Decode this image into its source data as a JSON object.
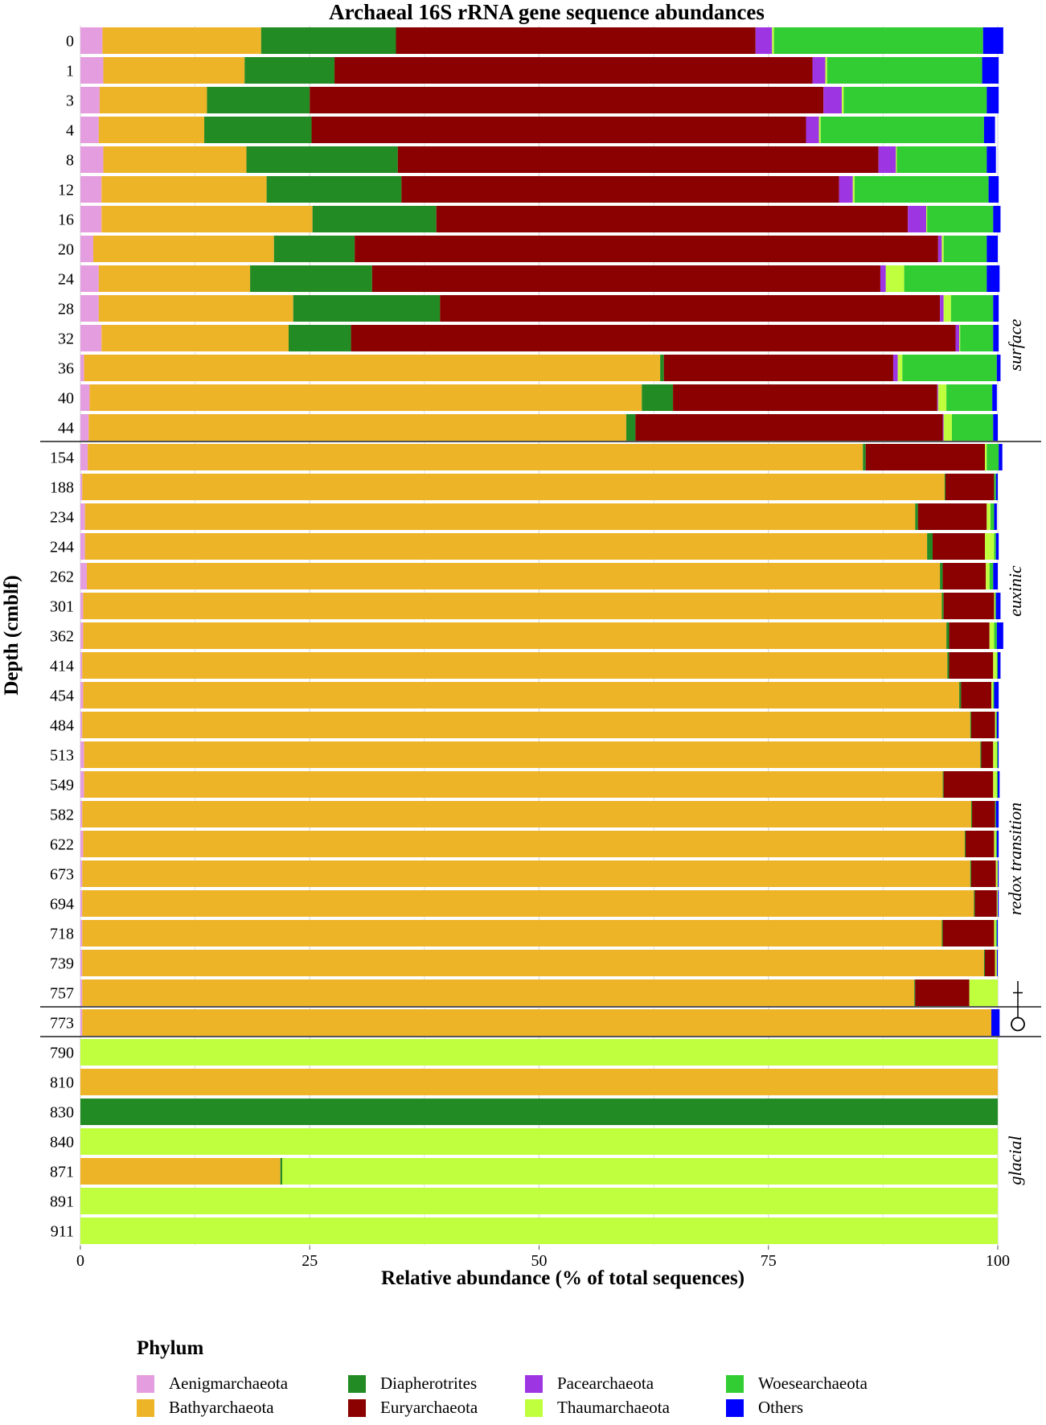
{
  "chart_data": {
    "type": "bar",
    "orientation": "horizontal",
    "stacked": true,
    "title": "Archaeal 16S rRNA gene sequence abundances",
    "xlabel": "Relative abundance (% of total sequences)",
    "ylabel": "Depth (cmblf)",
    "xlim": [
      0,
      100
    ],
    "xticks": [
      "0",
      "25",
      "50",
      "75",
      "100"
    ],
    "grid": true,
    "legend_title": "Phylum",
    "legend_position": "bottom",
    "categories": [
      "0",
      "1",
      "3",
      "4",
      "8",
      "12",
      "16",
      "20",
      "24",
      "28",
      "32",
      "36",
      "40",
      "44",
      "154",
      "188",
      "234",
      "244",
      "262",
      "301",
      "362",
      "414",
      "454",
      "484",
      "513",
      "549",
      "582",
      "622",
      "673",
      "694",
      "718",
      "739",
      "757",
      "773",
      "790",
      "810",
      "830",
      "840",
      "871",
      "891",
      "911"
    ],
    "series": [
      {
        "name": "Aenigmarchaeota",
        "color": "#e49ee0",
        "values": [
          2.4,
          2.5,
          2.1,
          2.0,
          2.5,
          2.3,
          2.3,
          1.4,
          2.0,
          2.0,
          2.3,
          0.4,
          1.0,
          0.9,
          0.8,
          0.2,
          0.5,
          0.5,
          0.7,
          0.3,
          0.3,
          0.2,
          0.3,
          0.2,
          0.4,
          0.4,
          0.2,
          0.3,
          0.2,
          0.2,
          0.2,
          0.2,
          0.2,
          0.2,
          0,
          0,
          0,
          0,
          0,
          0,
          0
        ]
      },
      {
        "name": "Bathyarchaeota",
        "color": "#eeb428",
        "values": [
          17.3,
          15.4,
          11.7,
          11.5,
          15.6,
          18.0,
          23.0,
          19.7,
          16.5,
          21.2,
          20.4,
          62.8,
          60.2,
          58.6,
          84.5,
          94.0,
          90.5,
          91.8,
          93.0,
          93.6,
          94.1,
          94.3,
          95.5,
          96.8,
          97.7,
          93.6,
          96.9,
          96.1,
          96.8,
          97.2,
          93.7,
          98.3,
          90.7,
          99.1,
          0,
          100,
          0,
          0,
          21.8,
          0,
          0
        ]
      },
      {
        "name": "Diapherotrites",
        "color": "#238b23",
        "values": [
          14.7,
          9.8,
          11.2,
          11.7,
          16.5,
          14.7,
          13.5,
          8.8,
          13.3,
          16.0,
          6.8,
          0.4,
          3.4,
          1.0,
          0.3,
          0.1,
          0.3,
          0.6,
          0.3,
          0.2,
          0.3,
          0.2,
          0.2,
          0.1,
          0.1,
          0.1,
          0.1,
          0.1,
          0.1,
          0.1,
          0.1,
          0.1,
          0.1,
          0,
          0,
          0,
          100,
          0,
          0.2,
          0,
          0
        ]
      },
      {
        "name": "Euryarchaeota",
        "color": "#8b0000",
        "values": [
          39.2,
          52.1,
          56.0,
          53.9,
          52.4,
          47.7,
          51.4,
          63.6,
          55.4,
          54.5,
          65.9,
          25.0,
          28.8,
          33.5,
          13.0,
          5.3,
          7.5,
          5.7,
          4.7,
          5.5,
          4.4,
          4.8,
          3.3,
          2.6,
          1.3,
          5.4,
          2.5,
          3.1,
          2.7,
          2.4,
          5.6,
          1.1,
          5.9,
          0,
          0,
          0,
          0,
          0,
          0,
          0,
          0
        ]
      },
      {
        "name": "Pacearchaeota",
        "color": "#9e35e3",
        "values": [
          1.8,
          1.4,
          2.0,
          1.4,
          1.9,
          1.5,
          2.0,
          0.4,
          0.6,
          0.4,
          0.4,
          0.5,
          0.1,
          0.1,
          0,
          0,
          0,
          0,
          0,
          0,
          0,
          0,
          0,
          0,
          0,
          0,
          0,
          0,
          0,
          0,
          0,
          0,
          0,
          0,
          0,
          0,
          0,
          0,
          0,
          0,
          0
        ]
      },
      {
        "name": "Thaumarchaeota",
        "color": "#c0ff3e",
        "values": [
          0.2,
          0.2,
          0.2,
          0.2,
          0.1,
          0.2,
          0.1,
          0.2,
          2.0,
          0.8,
          0.1,
          0.5,
          0.9,
          0.9,
          0.2,
          0,
          0.4,
          1.0,
          0.4,
          0.1,
          0.5,
          0.4,
          0.2,
          0.1,
          0.4,
          0.4,
          0,
          0.2,
          0.2,
          0.1,
          0.2,
          0.2,
          3.1,
          0,
          100,
          0,
          0,
          100,
          78.0,
          100,
          100
        ]
      },
      {
        "name": "Woesearchaeota",
        "color": "#32cd32",
        "values": [
          22.8,
          16.9,
          15.6,
          17.8,
          9.8,
          14.6,
          7.2,
          4.7,
          9.0,
          4.6,
          3.6,
          10.3,
          5.0,
          4.5,
          1.3,
          0.2,
          0.4,
          0.2,
          0.4,
          0.1,
          0.3,
          0.1,
          0.1,
          0.1,
          0.1,
          0.1,
          0.1,
          0.1,
          0,
          0,
          0.1,
          0,
          0,
          0,
          0,
          0,
          0,
          0,
          0,
          0,
          0
        ]
      },
      {
        "name": "Others",
        "color": "#0000ff",
        "values": [
          2.2,
          1.8,
          1.3,
          1.2,
          1.0,
          1.1,
          0.8,
          1.2,
          1.4,
          0.6,
          0.6,
          0.4,
          0.5,
          0.5,
          0.4,
          0.2,
          0.3,
          0.3,
          0.5,
          0.5,
          0.7,
          0.3,
          0.5,
          0.2,
          0.1,
          0.2,
          0.3,
          0.2,
          0.1,
          0.1,
          0.1,
          0.1,
          0,
          0.9,
          0,
          0,
          0,
          0,
          0,
          0,
          0
        ]
      }
    ],
    "zones": [
      {
        "label": "surface",
        "from": "0",
        "to": "44"
      },
      {
        "label": "euxinic",
        "from": "154",
        "to": "362"
      },
      {
        "label": "redox transition",
        "from": "454",
        "to": "757"
      },
      {
        "label": "glacial",
        "from": "790",
        "to": "911"
      }
    ]
  }
}
